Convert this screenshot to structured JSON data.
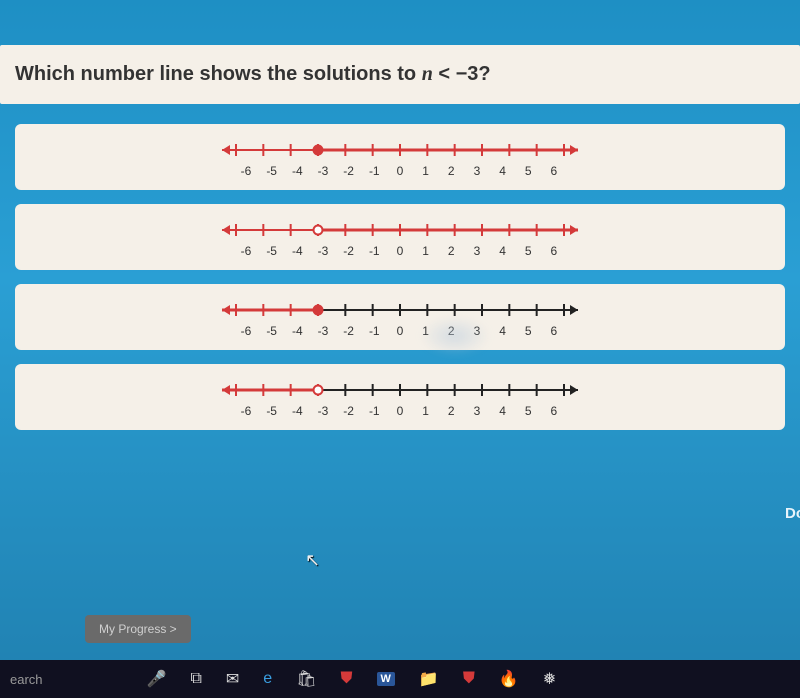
{
  "question": {
    "prefix": "Which number line shows the solutions to ",
    "expr_var": "n",
    "expr_op": " < ",
    "expr_val": "−3",
    "suffix": "?"
  },
  "numberline": {
    "min": -6,
    "max": 6,
    "tick_labels": [
      "-6",
      "-5",
      "-4",
      "-3",
      "-2",
      "-1",
      "0",
      "1",
      "2",
      "3",
      "4",
      "5",
      "6"
    ],
    "line_color_data": "#d43a3a",
    "line_color_base": "#222222",
    "tick_height": 6,
    "line_width": 2,
    "point_radius": 4.5,
    "bg_color": "#f5f0e8"
  },
  "options": [
    {
      "point_at": -3,
      "open": false,
      "shaded": "right",
      "axis_color": "#d43a3a"
    },
    {
      "point_at": -3,
      "open": true,
      "shaded": "right",
      "axis_color": "#d43a3a"
    },
    {
      "point_at": -3,
      "open": false,
      "shaded": "left",
      "axis_color": "#222222"
    },
    {
      "point_at": -3,
      "open": true,
      "shaded": "left",
      "axis_color": "#222222"
    }
  ],
  "buttons": {
    "progress": "My Progress  >",
    "done": "Do"
  },
  "taskbar": {
    "search": "earch",
    "icons": [
      {
        "name": "mic-icon",
        "glyph": "🎤"
      },
      {
        "name": "taskview-icon",
        "glyph": "⧉"
      },
      {
        "name": "mail-icon",
        "glyph": "✉"
      },
      {
        "name": "edge-icon",
        "glyph": "e",
        "color": "#3a9ee0"
      },
      {
        "name": "store-icon",
        "glyph": "🛍"
      },
      {
        "name": "mcafee-icon",
        "glyph": "⛊",
        "color": "#d43a3a"
      },
      {
        "name": "word-icon",
        "glyph": "W",
        "bg": "#2a5699"
      },
      {
        "name": "explorer-icon",
        "glyph": "📁"
      },
      {
        "name": "shield-icon",
        "glyph": "⛊",
        "color": "#d43a3a"
      },
      {
        "name": "firefox-icon",
        "glyph": "🔥"
      },
      {
        "name": "app-icon",
        "glyph": "❅"
      }
    ]
  }
}
